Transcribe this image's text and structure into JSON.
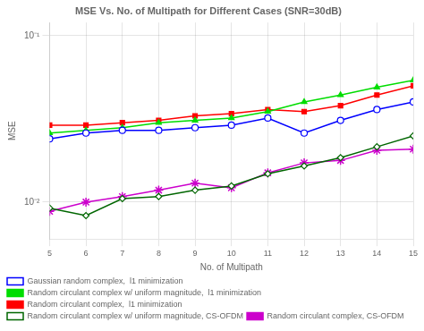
{
  "chart_data": {
    "type": "line",
    "title": "MSE Vs. No. of Multipath for Different Cases (SNR=30dB)",
    "x_label": "No. of Multipath",
    "y_label": "MSE",
    "x": [
      5,
      6,
      7,
      8,
      9,
      10,
      11,
      12,
      13,
      14,
      15
    ],
    "series": [
      {
        "name": "Gaussian random complex,  l1 minimization",
        "color": "#0000ff",
        "marker": "open circle",
        "values": [
          0.024,
          0.026,
          0.027,
          0.027,
          0.028,
          0.029,
          0.032,
          0.026,
          0.031,
          0.036,
          0.04
        ]
      },
      {
        "name": "Random circulant complex w/ uniform magnitude,  l1 minimization",
        "color": "#00dd00",
        "marker": "triangle",
        "values": [
          0.026,
          0.027,
          0.028,
          0.03,
          0.031,
          0.032,
          0.035,
          0.04,
          0.044,
          0.049,
          0.054
        ]
      },
      {
        "name": "Random circulant complex,  l1 minimization",
        "color": "#ff0000",
        "marker": "square",
        "values": [
          0.029,
          0.029,
          0.03,
          0.031,
          0.033,
          0.034,
          0.036,
          0.035,
          0.038,
          0.044,
          0.05
        ]
      },
      {
        "name": "Random circulant complex w/ uniform magnitude, CS-OFDM",
        "color": "#006600",
        "marker": "open diamond",
        "values": [
          0.0092,
          0.0083,
          0.0105,
          0.0108,
          0.0118,
          0.0125,
          0.0148,
          0.0165,
          0.0185,
          0.0215,
          0.025
        ]
      },
      {
        "name": "Random circulant complex, CS-OFDM",
        "color": "#cc00cc",
        "marker": "star",
        "values": [
          0.0088,
          0.01,
          0.0108,
          0.0118,
          0.013,
          0.0122,
          0.015,
          0.0172,
          0.0178,
          0.0205,
          0.0208
        ]
      }
    ],
    "xlim": [
      5,
      15
    ],
    "xticks": [
      5,
      6,
      7,
      8,
      9,
      10,
      11,
      12,
      13,
      14,
      15
    ],
    "ylim": [
      0.006,
      0.12
    ],
    "yticks": [
      {
        "value": 0.01,
        "label": "10⁻²"
      },
      {
        "value": 0.1,
        "label": "10⁻¹"
      }
    ],
    "log": "y",
    "grid": true,
    "legend": "lower left"
  }
}
